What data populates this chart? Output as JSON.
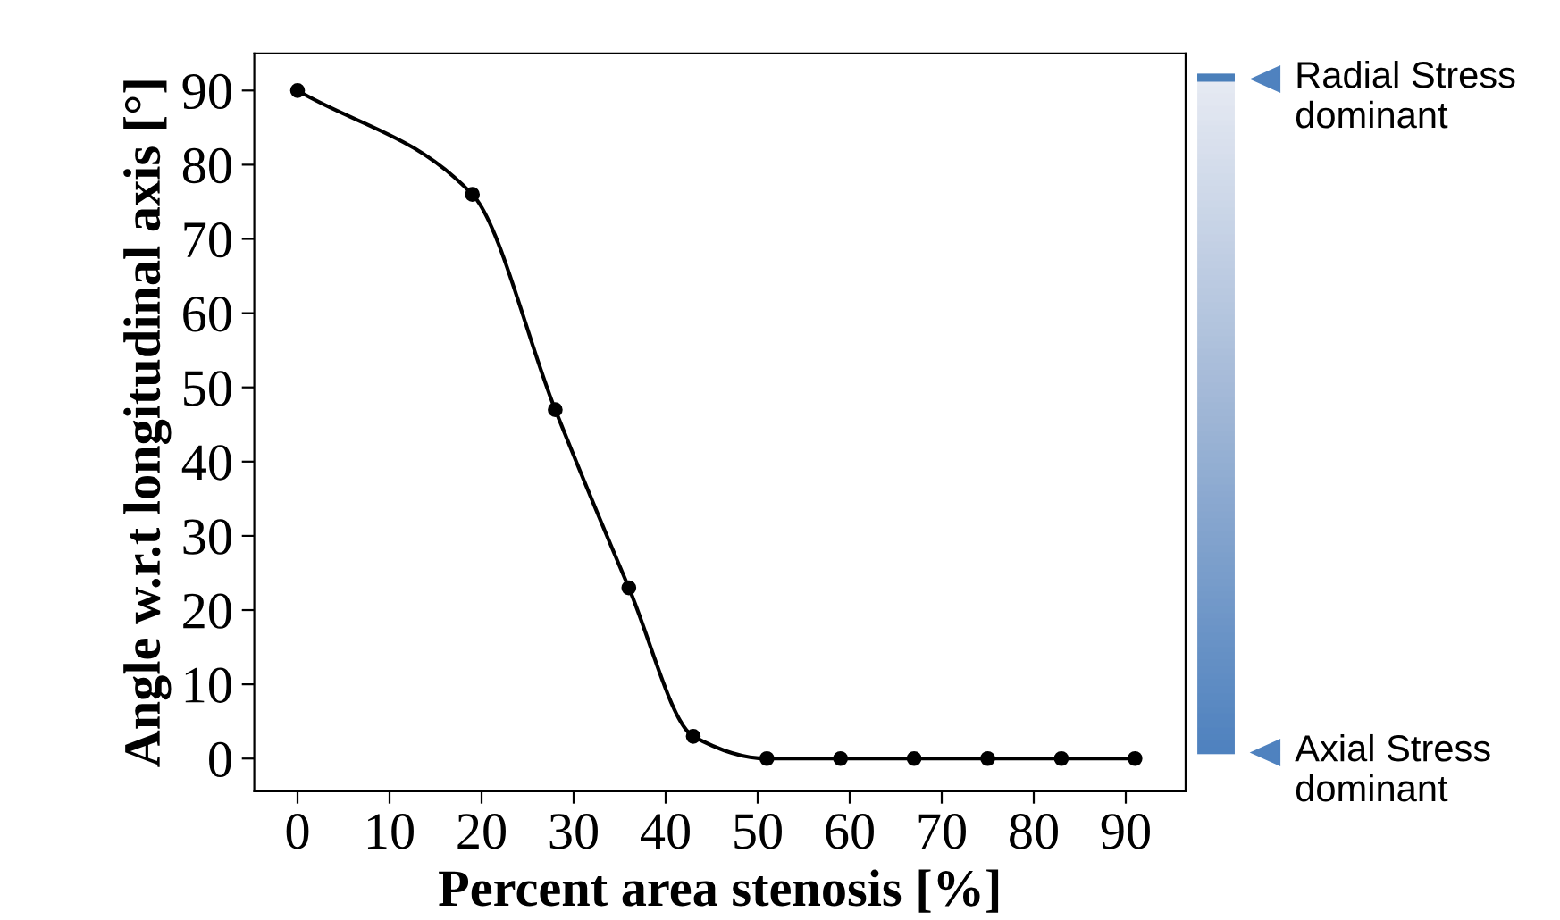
{
  "chart_data": {
    "type": "line",
    "xlabel": "Percent area stenosis [%]",
    "ylabel": "Angle w.r.t longitudinal axis [°]",
    "x": [
      0,
      19,
      28,
      36,
      43,
      51,
      59,
      67,
      75,
      83,
      91
    ],
    "series": [
      {
        "color": "#000000",
        "values": [
          90,
          76,
          47,
          23,
          3,
          0,
          0,
          0,
          0,
          0,
          0
        ]
      }
    ],
    "marker": "circle",
    "line_style": "solid",
    "xlim": [
      -4.7,
      96.5
    ],
    "ylim": [
      -4.4,
      95
    ],
    "xticks": [
      0,
      10,
      20,
      30,
      40,
      50,
      60,
      70,
      80,
      90
    ],
    "yticks": [
      0,
      10,
      20,
      30,
      40,
      50,
      60,
      70,
      80,
      90
    ],
    "grid": false,
    "annotations": [
      "Radial Stress\ndominant",
      "Axial Stress\ndominant"
    ]
  }
}
